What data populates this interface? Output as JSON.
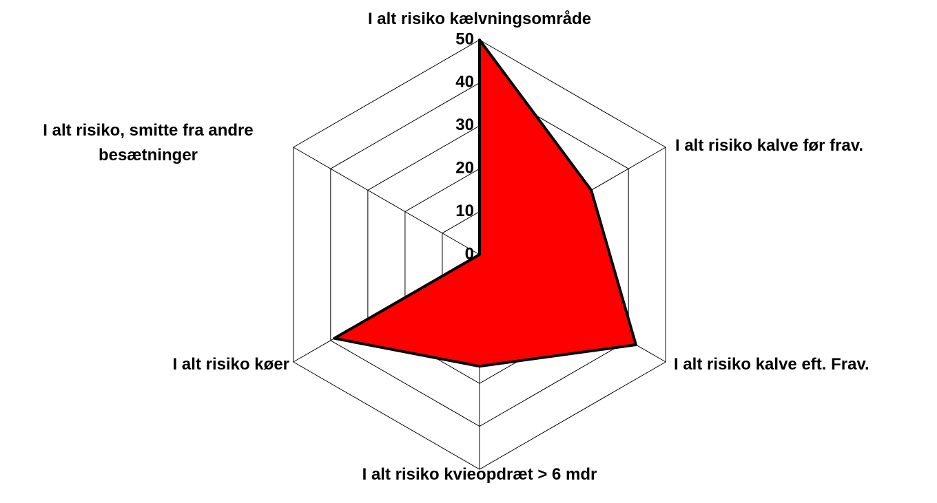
{
  "chart_data": {
    "type": "radar",
    "categories": [
      "I alt risiko kælvningsområde",
      "I alt risiko kalve før frav.",
      "I alt risiko kalve eft. Frav.",
      "I alt risiko kvieopdræt > 6 mdr",
      "I alt risiko køer",
      "I alt risiko, smitte fra andre besætninger"
    ],
    "values": [
      50,
      30,
      42,
      26,
      39,
      0
    ],
    "color": "#ff0000",
    "ylim": [
      0,
      50
    ],
    "yticks": [
      0,
      10,
      20,
      30,
      40,
      50
    ],
    "grid": true
  }
}
